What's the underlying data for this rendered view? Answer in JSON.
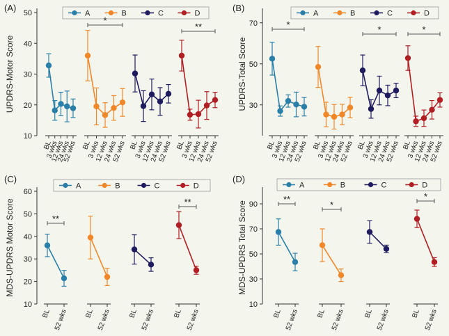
{
  "colors": {
    "A": "#2a7fa8",
    "B": "#f0882a",
    "C": "#1e1b5e",
    "D": "#b01e24"
  },
  "chart_data": [
    {
      "type": "scatter",
      "panel_label": "(A)",
      "ylabel": "UPDRS-Motor Score",
      "ylim": [
        10,
        50
      ],
      "yticks": [
        "10",
        "20",
        "30",
        "40",
        "50"
      ],
      "legend": [
        "A",
        "B",
        "C",
        "D"
      ],
      "groups": [
        {
          "name": "A",
          "x": [
            "BL",
            "3 wks",
            "12 wks",
            "24 wks",
            "52 wks"
          ],
          "y": [
            32.8,
            18.2,
            20.3,
            19.5,
            18.9
          ],
          "err": [
            3.8,
            3.2,
            3.8,
            5.0,
            3.0
          ]
        },
        {
          "name": "B",
          "x": [
            "BL",
            "3 wks",
            "12 wks",
            "24 wks",
            "52 wks"
          ],
          "y": [
            36.0,
            19.5,
            16.7,
            19.0,
            20.8
          ],
          "err": [
            8.2,
            6.0,
            4.0,
            4.0,
            4.5
          ]
        },
        {
          "name": "C",
          "x": [
            "BL",
            "3 wks",
            "12 wks",
            "24 wks",
            "52 wks"
          ],
          "y": [
            30.2,
            19.6,
            23.4,
            21.1,
            23.6
          ],
          "err": [
            6.0,
            5.0,
            5.0,
            4.5,
            3.0
          ]
        },
        {
          "name": "D",
          "x": [
            "BL",
            "3 wks",
            "12 wks",
            "24 wks",
            "52 wks"
          ],
          "y": [
            36.0,
            16.8,
            17.0,
            19.8,
            21.6
          ],
          "err": [
            5.0,
            1.8,
            4.5,
            4.5,
            2.5
          ]
        }
      ],
      "significance": [
        {
          "group": "B",
          "label": "*"
        },
        {
          "group": "D",
          "label": "**"
        }
      ]
    },
    {
      "type": "scatter",
      "panel_label": "(B)",
      "ylabel": "UPDRS-Total Score",
      "ylim": [
        15,
        75
      ],
      "yticks": [
        "30",
        "50",
        "70"
      ],
      "ytick_values": [
        30,
        50,
        70
      ],
      "legend": [
        "A",
        "B",
        "C",
        "D"
      ],
      "groups": [
        {
          "name": "A",
          "x": [
            "BL",
            "3 wks",
            "12 wks",
            "24 wks",
            "52 wks"
          ],
          "y": [
            52.5,
            27.0,
            31.9,
            30.2,
            29.1
          ],
          "err": [
            8.0,
            2.5,
            3.0,
            6.0,
            4.5
          ]
        },
        {
          "name": "B",
          "x": [
            "BL",
            "3 wks",
            "12 wks",
            "24 wks",
            "52 wks"
          ],
          "y": [
            48.5,
            25.3,
            24.2,
            25.3,
            28.7
          ],
          "err": [
            10.0,
            6.0,
            6.0,
            5.0,
            5.0
          ]
        },
        {
          "name": "C",
          "x": [
            "BL",
            "3 wks",
            "12 wks",
            "24 wks",
            "52 wks"
          ],
          "y": [
            46.8,
            28.0,
            37.0,
            34.6,
            37.0
          ],
          "err": [
            7.5,
            4.5,
            7.0,
            5.0,
            3.5
          ]
        },
        {
          "name": "D",
          "x": [
            "BL",
            "3 wks",
            "12 wks",
            "24 wks",
            "52 wks"
          ],
          "y": [
            52.8,
            22.0,
            23.5,
            27.6,
            32.4
          ],
          "err": [
            6.0,
            2.5,
            4.0,
            4.5,
            3.5
          ]
        }
      ],
      "significance": [
        {
          "group": "A",
          "label": "*"
        },
        {
          "group": "C",
          "label": "*"
        },
        {
          "group": "D",
          "label": "*"
        }
      ]
    },
    {
      "type": "scatter",
      "panel_label": "(C)",
      "ylabel": "MDS-UPDRS Motor Score",
      "ylim": [
        10,
        60
      ],
      "yticks": [
        "10",
        "20",
        "30",
        "40",
        "50",
        "60"
      ],
      "legend": [
        "A",
        "B",
        "C",
        "D"
      ],
      "groups": [
        {
          "name": "A",
          "x": [
            "BL",
            "52 wks"
          ],
          "y": [
            36.0,
            21.4
          ],
          "err": [
            5.0,
            3.5
          ]
        },
        {
          "name": "B",
          "x": [
            "BL",
            "52 wks"
          ],
          "y": [
            39.5,
            22.0
          ],
          "err": [
            9.5,
            3.8
          ]
        },
        {
          "name": "C",
          "x": [
            "BL",
            "52 wks"
          ],
          "y": [
            34.2,
            27.5
          ],
          "err": [
            6.5,
            3.0
          ]
        },
        {
          "name": "D",
          "x": [
            "BL",
            "52 wks"
          ],
          "y": [
            45.0,
            25.0
          ],
          "err": [
            6.0,
            1.8
          ]
        }
      ],
      "significance": [
        {
          "group": "A",
          "label": "**"
        },
        {
          "group": "D",
          "label": "**"
        }
      ]
    },
    {
      "type": "scatter",
      "panel_label": "(D)",
      "ylabel": "MDS-UPDRS Total Score",
      "ylim": [
        10,
        100
      ],
      "yticks": [
        "10",
        "30",
        "50",
        "70",
        "90"
      ],
      "legend": [
        "A",
        "B",
        "C",
        "D"
      ],
      "groups": [
        {
          "name": "A",
          "x": [
            "BL",
            "52 wks"
          ],
          "y": [
            67.5,
            43.5
          ],
          "err": [
            10.5,
            7.0
          ]
        },
        {
          "name": "B",
          "x": [
            "BL",
            "52 wks"
          ],
          "y": [
            57.0,
            33.0
          ],
          "err": [
            13.0,
            5.0
          ]
        },
        {
          "name": "C",
          "x": [
            "BL",
            "52 wks"
          ],
          "y": [
            67.5,
            54.0
          ],
          "err": [
            9.0,
            3.0
          ]
        },
        {
          "name": "D",
          "x": [
            "BL",
            "52 wks"
          ],
          "y": [
            78.0,
            43.5
          ],
          "err": [
            7.0,
            3.5
          ]
        }
      ],
      "significance": [
        {
          "group": "A",
          "label": "**"
        },
        {
          "group": "B",
          "label": "*"
        },
        {
          "group": "D",
          "label": "*"
        }
      ]
    }
  ]
}
